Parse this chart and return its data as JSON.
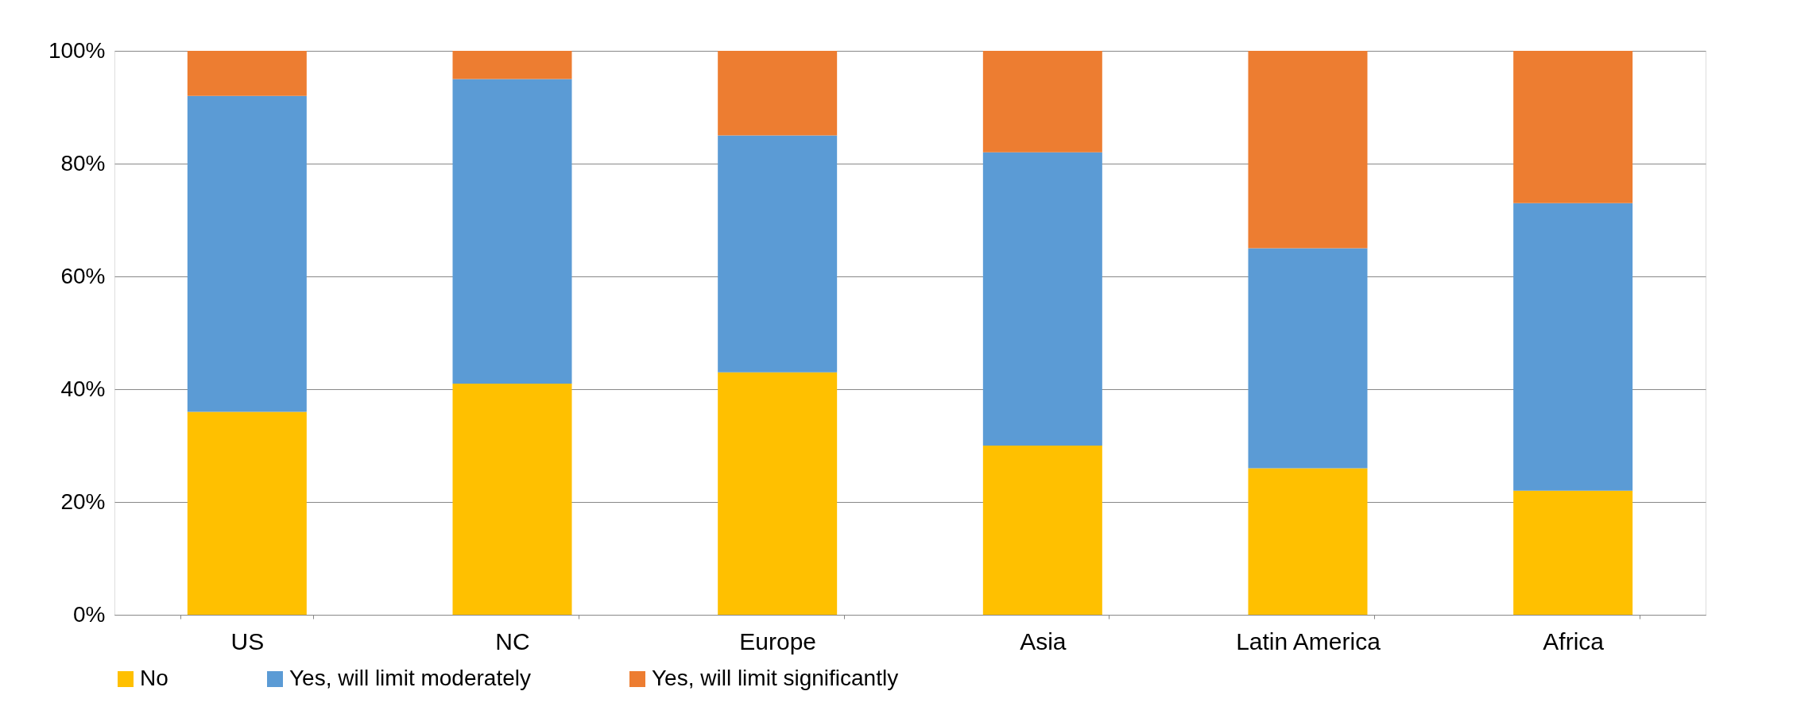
{
  "chart_data": {
    "type": "bar",
    "stacked": true,
    "categories": [
      "US",
      "NC",
      "Europe",
      "Asia",
      "Latin America",
      "Africa"
    ],
    "series": [
      {
        "name": "No",
        "color": "#ffc000",
        "values": [
          36,
          41,
          43,
          30,
          26,
          22
        ]
      },
      {
        "name": "Yes, will limit moderately",
        "color": "#5b9bd5",
        "values": [
          56,
          54,
          42,
          52,
          39,
          51
        ]
      },
      {
        "name": "Yes, will limit significantly",
        "color": "#ed7d31",
        "values": [
          8,
          5,
          15,
          18,
          35,
          27
        ]
      }
    ],
    "ylim": [
      0,
      100
    ],
    "yticks": [
      {
        "value": 0,
        "label": "0%"
      },
      {
        "value": 20,
        "label": "20%"
      },
      {
        "value": 40,
        "label": "40%"
      },
      {
        "value": 60,
        "label": "60%"
      },
      {
        "value": 80,
        "label": "80%"
      },
      {
        "value": 100,
        "label": "100%"
      }
    ],
    "grid": "y",
    "legend": "bottom"
  }
}
